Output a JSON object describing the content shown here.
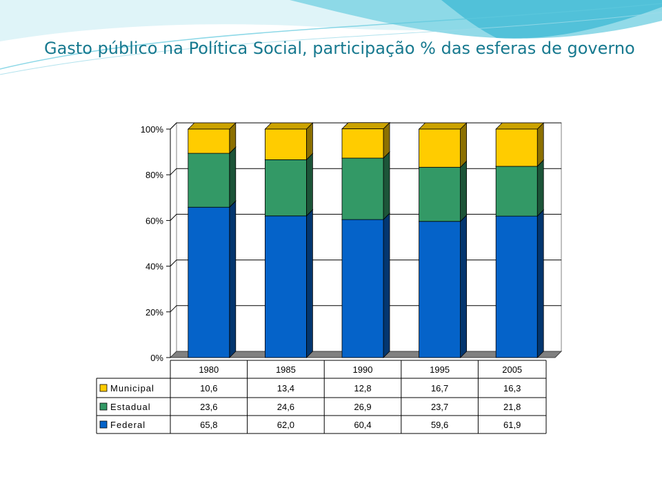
{
  "slide": {
    "title": "Gasto público na Política Social, participação % das esferas de governo"
  },
  "colors": {
    "title": "#17798f",
    "federal": "#0563c9",
    "estadual": "#339966",
    "municipal": "#ffcc00",
    "decor_light": "#bfe9f2",
    "decor_mid": "#5cc7dd"
  },
  "chart_data": {
    "type": "bar",
    "stacked": true,
    "three_d": true,
    "categories": [
      "1980",
      "1985",
      "1990",
      "1995",
      "2005"
    ],
    "series": [
      {
        "name": "Municipal",
        "values": [
          10.6,
          13.4,
          12.8,
          16.7,
          16.3
        ],
        "labels": [
          "10,6",
          "13,4",
          "12,8",
          "16,7",
          "16,3"
        ],
        "color": "#ffcc00"
      },
      {
        "name": "Estadual",
        "values": [
          23.6,
          24.6,
          26.9,
          23.7,
          21.8
        ],
        "labels": [
          "23,6",
          "24,6",
          "26,9",
          "23,7",
          "21,8"
        ],
        "color": "#339966"
      },
      {
        "name": "Federal",
        "values": [
          65.8,
          62.0,
          60.4,
          59.6,
          61.9
        ],
        "labels": [
          "65,8",
          "62,0",
          "60,4",
          "59,6",
          "61,9"
        ],
        "color": "#0563c9"
      }
    ],
    "y_ticks": [
      "0%",
      "20%",
      "40%",
      "60%",
      "80%",
      "100%"
    ],
    "ylim": [
      0,
      100
    ],
    "grid": true,
    "data_table": true
  }
}
